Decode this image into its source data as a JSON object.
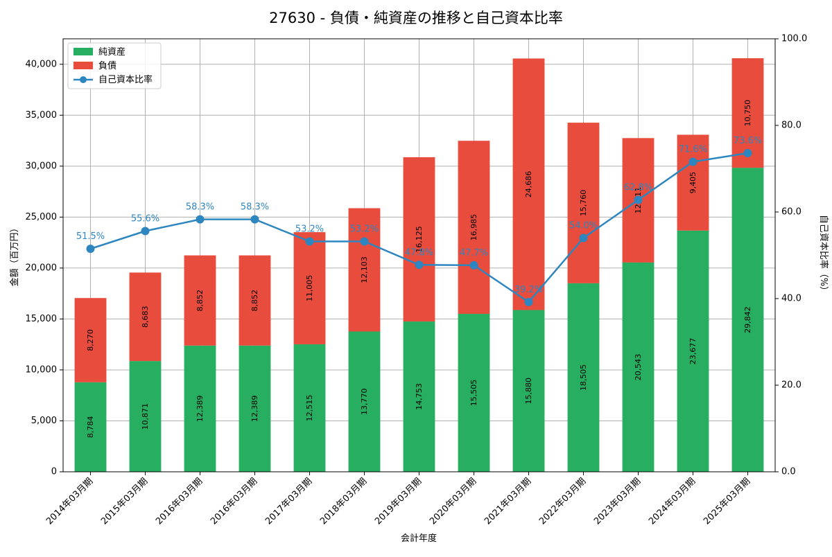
{
  "chart_data": {
    "type": "bar",
    "title": "27630 - 負債・純資産の推移と自己資本比率",
    "xlabel": "会計年度",
    "ylabel": "金額（百万円）",
    "y2label": "自己資本比率（%）",
    "ylim": [
      0,
      42500
    ],
    "y2lim": [
      0,
      100
    ],
    "yticks": [
      0,
      5000,
      10000,
      15000,
      20000,
      25000,
      30000,
      35000,
      40000
    ],
    "ytick_labels": [
      "0",
      "5,000",
      "10,000",
      "15,000",
      "20,000",
      "25,000",
      "30,000",
      "35,000",
      "40,000"
    ],
    "y2ticks": [
      0,
      20,
      40,
      60,
      80,
      100
    ],
    "y2tick_labels": [
      "0.0",
      "20.0",
      "40.0",
      "60.0",
      "80.0",
      "100.0"
    ],
    "grid": true,
    "legend_position": "top-left",
    "categories": [
      "2014年03月期",
      "2015年03月期",
      "2016年03月期",
      "2016年03月期",
      "2017年03月期",
      "2018年03月期",
      "2019年03月期",
      "2020年03月期",
      "2021年03月期",
      "2022年03月期",
      "2023年03月期",
      "2024年03月期",
      "2025年03月期"
    ],
    "series": [
      {
        "name": "純資産",
        "kind": "bar",
        "color": "#27ae60",
        "values": [
          8784,
          10871,
          12389,
          12389,
          12515,
          13770,
          14753,
          15505,
          15880,
          18505,
          20543,
          23677,
          29842
        ],
        "labels": [
          "8,784",
          "10,871",
          "12,389",
          "12,389",
          "12,515",
          "13,770",
          "14,753",
          "15,505",
          "15,880",
          "18,505",
          "20,543",
          "23,677",
          "29,842"
        ]
      },
      {
        "name": "負債",
        "kind": "bar",
        "color": "#e74c3c",
        "values": [
          8270,
          8683,
          8852,
          8852,
          11005,
          12103,
          16125,
          16985,
          24686,
          15760,
          12211,
          9405,
          10750
        ],
        "labels": [
          "8,270",
          "8,683",
          "8,852",
          "8,852",
          "11,005",
          "12,103",
          "16,125",
          "16,985",
          "24,686",
          "15,760",
          "12,211",
          "9,405",
          "10,750"
        ]
      },
      {
        "name": "自己資本比率",
        "kind": "line",
        "axis": "right",
        "color": "#2e86c1",
        "values": [
          51.5,
          55.6,
          58.3,
          58.3,
          53.2,
          53.2,
          47.8,
          47.7,
          39.2,
          54.0,
          62.8,
          71.6,
          73.6
        ],
        "labels": [
          "51.5%",
          "55.6%",
          "58.3%",
          "58.3%",
          "53.2%",
          "53.2%",
          "47.8%",
          "47.7%",
          "39.2%",
          "54.0%",
          "62.8%",
          "71.6%",
          "73.6%"
        ]
      }
    ]
  }
}
